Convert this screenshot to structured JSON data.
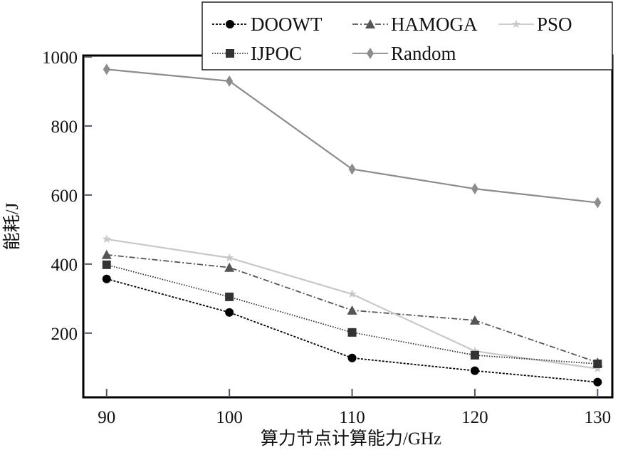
{
  "chart_data": {
    "type": "line",
    "title": "",
    "xlabel": "算力节点计算能力/GHz",
    "ylabel": "能耗/J",
    "x": [
      90,
      100,
      110,
      120,
      130
    ],
    "xticks": [
      "90",
      "100",
      "110",
      "120",
      "130"
    ],
    "yticks": [
      "200",
      "400",
      "600",
      "800",
      "1000"
    ],
    "xlim": [
      88.1,
      131.2
    ],
    "ylim": [
      14,
      1004
    ],
    "grid": false,
    "legend_position": "top-right",
    "series": [
      {
        "name": "DOOWT",
        "values": [
          357,
          260,
          128,
          91,
          58
        ],
        "color": "#000000",
        "marker": "circle",
        "dash": "3,2"
      },
      {
        "name": "HAMOGA",
        "values": [
          427,
          390,
          266,
          237,
          115
        ],
        "color": "#555555",
        "marker": "triangle",
        "dash": "8,3,2,3"
      },
      {
        "name": "PSO",
        "values": [
          472,
          418,
          313,
          148,
          97
        ],
        "color": "#c8c8c8",
        "marker": "star",
        "dash": ""
      },
      {
        "name": "IJPOC",
        "values": [
          398,
          305,
          202,
          136,
          111
        ],
        "color": "#333333",
        "marker": "square",
        "dash": "1.5,2"
      },
      {
        "name": "Random",
        "values": [
          964,
          930,
          675,
          618,
          578
        ],
        "color": "#8c8c8c",
        "marker": "diamond",
        "dash": ""
      }
    ]
  }
}
